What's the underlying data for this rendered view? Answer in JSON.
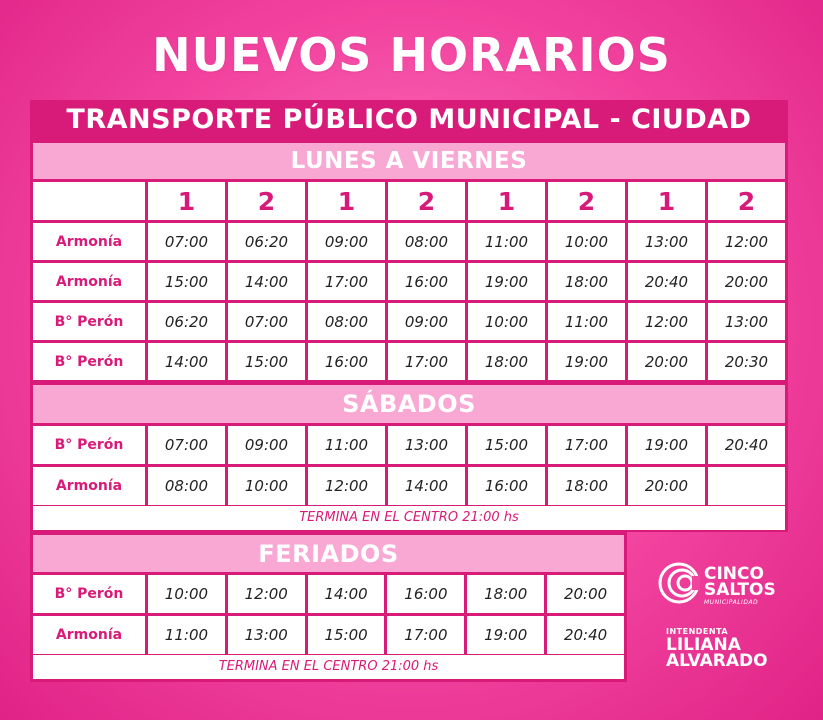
{
  "title": "NUEVOS HORARIOS",
  "subtitle": "TRANSPORTE PÚBLICO  MUNICIPAL - CIUDAD",
  "weekdays": {
    "label": "LUNES A VIERNES",
    "columns": [
      "1",
      "2",
      "1",
      "2",
      "1",
      "2",
      "1",
      "2"
    ],
    "rows": [
      {
        "stop": "Armonía",
        "times": [
          "07:00",
          "06:20",
          "09:00",
          "08:00",
          "11:00",
          "10:00",
          "13:00",
          "12:00"
        ]
      },
      {
        "stop": "Armonía",
        "times": [
          "15:00",
          "14:00",
          "17:00",
          "16:00",
          "19:00",
          "18:00",
          "20:40",
          "20:00"
        ]
      },
      {
        "stop": "B° Perón",
        "times": [
          "06:20",
          "07:00",
          "08:00",
          "09:00",
          "10:00",
          "11:00",
          "12:00",
          "13:00"
        ]
      },
      {
        "stop": "B° Perón",
        "times": [
          "14:00",
          "15:00",
          "16:00",
          "17:00",
          "18:00",
          "19:00",
          "20:00",
          "20:30"
        ]
      }
    ]
  },
  "saturdays": {
    "label": "SÁBADOS",
    "rows": [
      {
        "stop": "B° Perón",
        "times": [
          "07:00",
          "09:00",
          "11:00",
          "13:00",
          "15:00",
          "17:00",
          "19:00",
          "20:40"
        ]
      },
      {
        "stop": "Armonía",
        "times": [
          "08:00",
          "10:00",
          "12:00",
          "14:00",
          "16:00",
          "18:00",
          "20:00",
          ""
        ]
      }
    ],
    "note": "TERMINA EN EL CENTRO 21:00 hs"
  },
  "holidays": {
    "label": "FERIADOS",
    "rows": [
      {
        "stop": "B° Perón",
        "times": [
          "10:00",
          "12:00",
          "14:00",
          "16:00",
          "18:00",
          "20:00"
        ]
      },
      {
        "stop": "Armonía",
        "times": [
          "11:00",
          "13:00",
          "15:00",
          "17:00",
          "19:00",
          "20:40"
        ]
      }
    ],
    "note": "TERMINA EN EL CENTRO 21:00 hs"
  },
  "logo": {
    "line1": "CINCO",
    "line2": "SALTOS",
    "line3": "MUNICIPALIDAD",
    "icon": "cinco-saltos-logo-icon"
  },
  "intendenta": {
    "label": "INTENDENTA",
    "first": "LILIANA",
    "last": "ALVARADO"
  },
  "colors": {
    "brand_pink": "#d81b78",
    "light_pink_band": "#f9a8d4",
    "background": "#f2439f"
  }
}
